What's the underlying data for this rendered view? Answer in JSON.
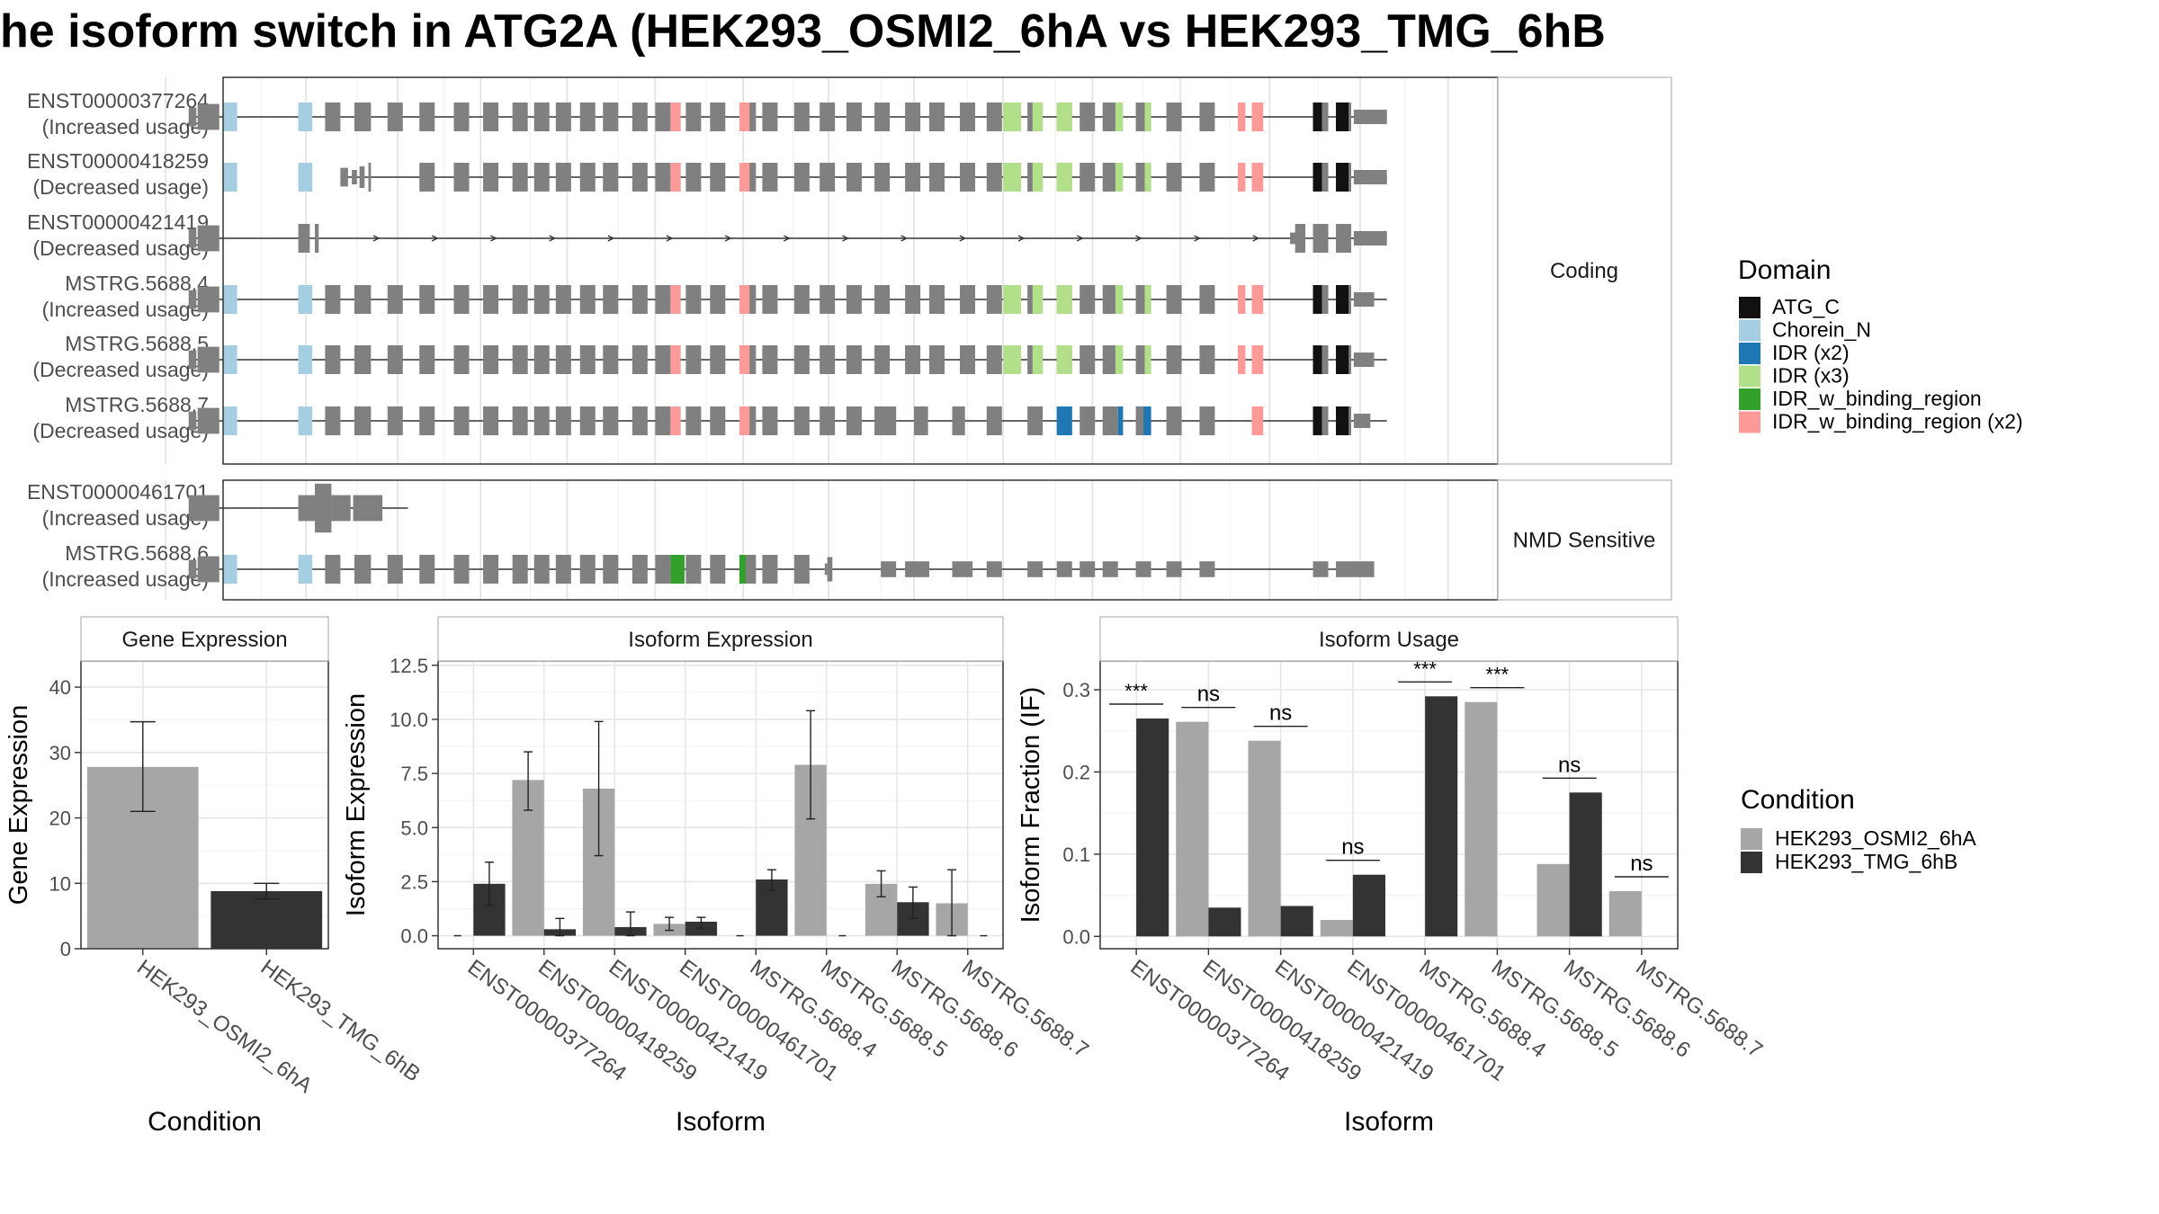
{
  "title": "he isoform switch in ATG2A (HEK293_OSMI2_6hA vs HEK293_TMG_6hB",
  "structure": {
    "facets": [
      {
        "label": "Coding",
        "rows": [
          {
            "id": "ENST00000377264",
            "usage": "(Increased usage)",
            "kind": "full",
            "ends": "std",
            "dom": "X3"
          },
          {
            "id": "ENST00000418259",
            "usage": "(Decreased usage)",
            "kind": "truncated",
            "ends": "std",
            "dom": "X3"
          },
          {
            "id": "ENST00000421419",
            "usage": "(Decreased usage)",
            "kind": "intronic",
            "ends": "std",
            "dom": "none"
          },
          {
            "id": "MSTRG.5688.4",
            "usage": "(Increased usage)",
            "kind": "full",
            "ends": "short",
            "dom": "X3"
          },
          {
            "id": "MSTRG.5688.5",
            "usage": "(Decreased usage)",
            "kind": "full",
            "ends": "short",
            "dom": "X3"
          },
          {
            "id": "MSTRG.5688.7",
            "usage": "(Decreased usage)",
            "kind": "x2",
            "ends": "short2",
            "dom": "X2"
          }
        ]
      },
      {
        "label": "NMD Sensitive",
        "rows": [
          {
            "id": "ENST00000461701",
            "usage": "(Increased usage)",
            "kind": "short",
            "ends": "none",
            "dom": "none"
          },
          {
            "id": "MSTRG.5688.6",
            "usage": "(Increased usage)",
            "kind": "nmd",
            "ends": "none",
            "dom": "G"
          }
        ]
      }
    ],
    "legend": {
      "title": "Domain",
      "items": [
        {
          "label": "ATG_C",
          "color": "#111111"
        },
        {
          "label": "Chorein_N",
          "color": "#A6CEE3"
        },
        {
          "label": "IDR (x2)",
          "color": "#1F78B4"
        },
        {
          "label": "IDR (x3)",
          "color": "#B2DF8A"
        },
        {
          "label": "IDR_w_binding_region",
          "color": "#33A02C"
        },
        {
          "label": "IDR_w_binding_region (x2)",
          "color": "#FB9A99"
        }
      ]
    }
  },
  "conditions": {
    "title": "Condition",
    "items": [
      {
        "label": "HEK293_OSMI2_6hA",
        "color": "#A6A6A6"
      },
      {
        "label": "HEK293_TMG_6hB",
        "color": "#333333"
      }
    ]
  },
  "chart_data": [
    {
      "type": "bar",
      "title": "Gene Expression",
      "xlabel": "Condition",
      "ylabel": "Gene Expression",
      "ylim": [
        0,
        44
      ],
      "yticks": [
        0,
        10,
        20,
        30,
        40
      ],
      "categories": [
        "HEK293_OSMI2_6hA",
        "HEK293_TMG_6hB"
      ],
      "values": [
        27.8,
        8.8
      ],
      "errors": [
        [
          21.0,
          34.7
        ],
        [
          7.6,
          10.0
        ]
      ],
      "grid": true
    },
    {
      "type": "bar",
      "title": "Isoform Expression",
      "xlabel": "Isoform",
      "ylabel": "Isoform Expression",
      "ylim": [
        -0.6,
        12.7
      ],
      "yticks": [
        0.0,
        2.5,
        5.0,
        7.5,
        10.0,
        12.5
      ],
      "categories": [
        "ENST00000377264",
        "ENST00000418259",
        "ENST00000421419",
        "ENST00000461701",
        "MSTRG.5688.4",
        "MSTRG.5688.5",
        "MSTRG.5688.6",
        "MSTRG.5688.7"
      ],
      "series": [
        {
          "name": "HEK293_OSMI2_6hA",
          "values": [
            0.0,
            7.2,
            6.8,
            0.55,
            0.0,
            7.9,
            2.4,
            1.5
          ],
          "errors": [
            null,
            [
              5.8,
              8.5
            ],
            [
              3.7,
              9.9
            ],
            [
              0.25,
              0.85
            ],
            null,
            [
              5.4,
              10.4
            ],
            [
              1.8,
              3.0
            ],
            [
              0.0,
              3.05
            ]
          ]
        },
        {
          "name": "HEK293_TMG_6hB",
          "values": [
            2.4,
            0.3,
            0.4,
            0.65,
            2.6,
            0.0,
            1.55,
            0.0
          ],
          "errors": [
            [
              1.4,
              3.4
            ],
            [
              0.0,
              0.8
            ],
            [
              0.0,
              1.1
            ],
            [
              0.35,
              0.85
            ],
            [
              2.1,
              3.05
            ],
            null,
            [
              0.8,
              2.25
            ],
            null
          ]
        }
      ],
      "grid": true
    },
    {
      "type": "bar",
      "title": "Isoform Usage",
      "xlabel": "Isoform",
      "ylabel": "Isoform Fraction (IF)",
      "ylim": [
        -0.015,
        0.335
      ],
      "yticks": [
        0.0,
        0.1,
        0.2,
        0.3
      ],
      "categories": [
        "ENST00000377264",
        "ENST00000418259",
        "ENST00000421419",
        "ENST00000461701",
        "MSTRG.5688.4",
        "MSTRG.5688.5",
        "MSTRG.5688.6",
        "MSTRG.5688.7"
      ],
      "series": [
        {
          "name": "HEK293_OSMI2_6hA",
          "values": [
            0.0,
            0.261,
            0.238,
            0.02,
            0.0,
            0.285,
            0.088,
            0.055
          ]
        },
        {
          "name": "HEK293_TMG_6hB",
          "values": [
            0.265,
            0.035,
            0.037,
            0.075,
            0.292,
            0.0,
            0.175,
            0.0
          ]
        }
      ],
      "annotations": [
        "***",
        "ns",
        "ns",
        "ns",
        "***",
        "***",
        "ns",
        "ns"
      ],
      "grid": true
    }
  ]
}
